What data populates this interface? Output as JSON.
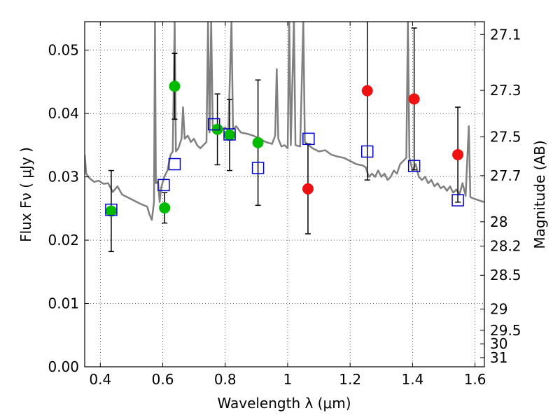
{
  "chart_data": {
    "type": "scatter",
    "title": "",
    "xlabel": "Wavelength  λ (μm)",
    "ylabel": "Flux  Fν  ( μJy )",
    "ylabel_right": "Magnitude (AB)",
    "xlim": [
      0.35,
      1.63
    ],
    "ylim": [
      0.0,
      0.0545
    ],
    "grid": true,
    "x_ticks": [
      0.4,
      0.6,
      0.8,
      1.0,
      1.2,
      1.4,
      1.6
    ],
    "x_tick_labels": [
      "0.4",
      "0.6",
      "0.8",
      "1",
      "1.2",
      "1.4",
      "1.6"
    ],
    "y_ticks": [
      0.0,
      0.01,
      0.02,
      0.03,
      0.04,
      0.05
    ],
    "y_tick_labels": [
      "0.00",
      "0.01",
      "0.02",
      "0.03",
      "0.04",
      "0.05"
    ],
    "right_ticks": [
      27.1,
      27.3,
      27.5,
      27.7,
      28,
      28.2,
      28.5,
      29,
      29.5,
      30,
      31
    ],
    "right_tick_labels": [
      "27.1",
      "27.3",
      "27.5",
      "27.7",
      "28",
      "28.2",
      "28.5",
      "29",
      "29.5",
      "30",
      "31"
    ],
    "series": [
      {
        "marker": "circle",
        "color": "#00bb00",
        "points": [
          {
            "x": 0.435,
            "y": 0.0246,
            "err": 0.0064
          },
          {
            "x": 0.606,
            "y": 0.0251,
            "err": 0.0024
          },
          {
            "x": 0.638,
            "y": 0.0443,
            "err": 0.0052
          },
          {
            "x": 0.775,
            "y": 0.0375,
            "err": 0.0056
          },
          {
            "x": 0.814,
            "y": 0.0366,
            "err": 0.0056
          },
          {
            "x": 0.905,
            "y": 0.0354,
            "err": 0.0099
          }
        ]
      },
      {
        "marker": "circle",
        "color": "#ee1111",
        "points": [
          {
            "x": 1.065,
            "y": 0.0281,
            "err": 0.0071
          },
          {
            "x": 1.255,
            "y": 0.0436,
            "err": 0.0141
          },
          {
            "x": 1.405,
            "y": 0.0423,
            "err": 0.0112
          },
          {
            "x": 1.545,
            "y": 0.0335,
            "err": 0.0075
          }
        ]
      },
      {
        "marker": "square-open",
        "color": "#0000cc",
        "points": [
          {
            "x": 0.435,
            "y": 0.0248
          },
          {
            "x": 0.603,
            "y": 0.0287
          },
          {
            "x": 0.638,
            "y": 0.032
          },
          {
            "x": 0.764,
            "y": 0.0383
          },
          {
            "x": 0.814,
            "y": 0.0367
          },
          {
            "x": 0.905,
            "y": 0.0314
          },
          {
            "x": 1.067,
            "y": 0.036
          },
          {
            "x": 1.255,
            "y": 0.034
          },
          {
            "x": 1.405,
            "y": 0.0317
          },
          {
            "x": 1.545,
            "y": 0.0263
          }
        ]
      },
      {
        "marker": "line",
        "color": "#808080",
        "points": [
          {
            "x": 0.35,
            "y": 0.0335
          },
          {
            "x": 0.355,
            "y": 0.0305
          },
          {
            "x": 0.365,
            "y": 0.0298
          },
          {
            "x": 0.38,
            "y": 0.0292
          },
          {
            "x": 0.395,
            "y": 0.0294
          },
          {
            "x": 0.41,
            "y": 0.0289
          },
          {
            "x": 0.425,
            "y": 0.029
          },
          {
            "x": 0.44,
            "y": 0.0276
          },
          {
            "x": 0.455,
            "y": 0.0285
          },
          {
            "x": 0.47,
            "y": 0.0272
          },
          {
            "x": 0.49,
            "y": 0.0267
          },
          {
            "x": 0.51,
            "y": 0.0262
          },
          {
            "x": 0.53,
            "y": 0.0257
          },
          {
            "x": 0.55,
            "y": 0.0253
          },
          {
            "x": 0.558,
            "y": 0.024
          },
          {
            "x": 0.565,
            "y": 0.0232
          },
          {
            "x": 0.572,
            "y": 0.026
          },
          {
            "x": 0.575,
            "y": 0.0545
          },
          {
            "x": 0.578,
            "y": 0.029
          },
          {
            "x": 0.585,
            "y": 0.0292
          },
          {
            "x": 0.59,
            "y": 0.026
          },
          {
            "x": 0.595,
            "y": 0.0283
          },
          {
            "x": 0.605,
            "y": 0.03
          },
          {
            "x": 0.615,
            "y": 0.031
          },
          {
            "x": 0.625,
            "y": 0.0335
          },
          {
            "x": 0.632,
            "y": 0.034
          },
          {
            "x": 0.638,
            "y": 0.0545
          },
          {
            "x": 0.642,
            "y": 0.034
          },
          {
            "x": 0.65,
            "y": 0.0345
          },
          {
            "x": 0.66,
            "y": 0.036
          },
          {
            "x": 0.665,
            "y": 0.041
          },
          {
            "x": 0.67,
            "y": 0.036
          },
          {
            "x": 0.68,
            "y": 0.0365
          },
          {
            "x": 0.69,
            "y": 0.0355
          },
          {
            "x": 0.7,
            "y": 0.036
          },
          {
            "x": 0.71,
            "y": 0.035
          },
          {
            "x": 0.72,
            "y": 0.0345
          },
          {
            "x": 0.73,
            "y": 0.035
          },
          {
            "x": 0.74,
            "y": 0.0355
          },
          {
            "x": 0.745,
            "y": 0.0545
          },
          {
            "x": 0.75,
            "y": 0.037
          },
          {
            "x": 0.755,
            "y": 0.0545
          },
          {
            "x": 0.76,
            "y": 0.038
          },
          {
            "x": 0.77,
            "y": 0.038
          },
          {
            "x": 0.78,
            "y": 0.0382
          },
          {
            "x": 0.79,
            "y": 0.0375
          },
          {
            "x": 0.8,
            "y": 0.0378
          },
          {
            "x": 0.81,
            "y": 0.0372
          },
          {
            "x": 0.82,
            "y": 0.0545
          },
          {
            "x": 0.825,
            "y": 0.0375
          },
          {
            "x": 0.835,
            "y": 0.038
          },
          {
            "x": 0.85,
            "y": 0.037
          },
          {
            "x": 0.87,
            "y": 0.0368
          },
          {
            "x": 0.89,
            "y": 0.0365
          },
          {
            "x": 0.91,
            "y": 0.036
          },
          {
            "x": 0.93,
            "y": 0.0355
          },
          {
            "x": 0.95,
            "y": 0.0352
          },
          {
            "x": 0.96,
            "y": 0.0365
          },
          {
            "x": 0.965,
            "y": 0.047
          },
          {
            "x": 0.97,
            "y": 0.036
          },
          {
            "x": 0.98,
            "y": 0.0348
          },
          {
            "x": 0.99,
            "y": 0.035
          },
          {
            "x": 1.0,
            "y": 0.0345
          },
          {
            "x": 1.005,
            "y": 0.0545
          },
          {
            "x": 1.01,
            "y": 0.035
          },
          {
            "x": 1.02,
            "y": 0.0545
          },
          {
            "x": 1.025,
            "y": 0.035
          },
          {
            "x": 1.04,
            "y": 0.0348
          },
          {
            "x": 1.05,
            "y": 0.0545
          },
          {
            "x": 1.055,
            "y": 0.0355
          },
          {
            "x": 1.08,
            "y": 0.0345
          },
          {
            "x": 1.1,
            "y": 0.034
          },
          {
            "x": 1.12,
            "y": 0.0342
          },
          {
            "x": 1.14,
            "y": 0.0335
          },
          {
            "x": 1.16,
            "y": 0.0332
          },
          {
            "x": 1.18,
            "y": 0.033
          },
          {
            "x": 1.2,
            "y": 0.0325
          },
          {
            "x": 1.22,
            "y": 0.032
          },
          {
            "x": 1.24,
            "y": 0.0318
          },
          {
            "x": 1.25,
            "y": 0.0315
          },
          {
            "x": 1.26,
            "y": 0.03
          },
          {
            "x": 1.27,
            "y": 0.0305
          },
          {
            "x": 1.28,
            "y": 0.03
          },
          {
            "x": 1.29,
            "y": 0.031
          },
          {
            "x": 1.3,
            "y": 0.03
          },
          {
            "x": 1.31,
            "y": 0.0305
          },
          {
            "x": 1.32,
            "y": 0.0295
          },
          {
            "x": 1.33,
            "y": 0.03
          },
          {
            "x": 1.34,
            "y": 0.031
          },
          {
            "x": 1.35,
            "y": 0.0305
          },
          {
            "x": 1.36,
            "y": 0.032
          },
          {
            "x": 1.37,
            "y": 0.0325
          },
          {
            "x": 1.38,
            "y": 0.033
          },
          {
            "x": 1.385,
            "y": 0.0545
          },
          {
            "x": 1.39,
            "y": 0.033
          },
          {
            "x": 1.4,
            "y": 0.031
          },
          {
            "x": 1.41,
            "y": 0.032
          },
          {
            "x": 1.42,
            "y": 0.03
          },
          {
            "x": 1.43,
            "y": 0.0295
          },
          {
            "x": 1.44,
            "y": 0.03
          },
          {
            "x": 1.45,
            "y": 0.029
          },
          {
            "x": 1.46,
            "y": 0.0295
          },
          {
            "x": 1.47,
            "y": 0.0285
          },
          {
            "x": 1.48,
            "y": 0.029
          },
          {
            "x": 1.49,
            "y": 0.0282
          },
          {
            "x": 1.5,
            "y": 0.0285
          },
          {
            "x": 1.51,
            "y": 0.0278
          },
          {
            "x": 1.52,
            "y": 0.0285
          },
          {
            "x": 1.53,
            "y": 0.0275
          },
          {
            "x": 1.54,
            "y": 0.028
          },
          {
            "x": 1.55,
            "y": 0.0272
          },
          {
            "x": 1.56,
            "y": 0.029
          },
          {
            "x": 1.57,
            "y": 0.027
          },
          {
            "x": 1.58,
            "y": 0.038
          },
          {
            "x": 1.585,
            "y": 0.0268
          },
          {
            "x": 1.6,
            "y": 0.0265
          },
          {
            "x": 1.63,
            "y": 0.026
          }
        ]
      }
    ]
  }
}
